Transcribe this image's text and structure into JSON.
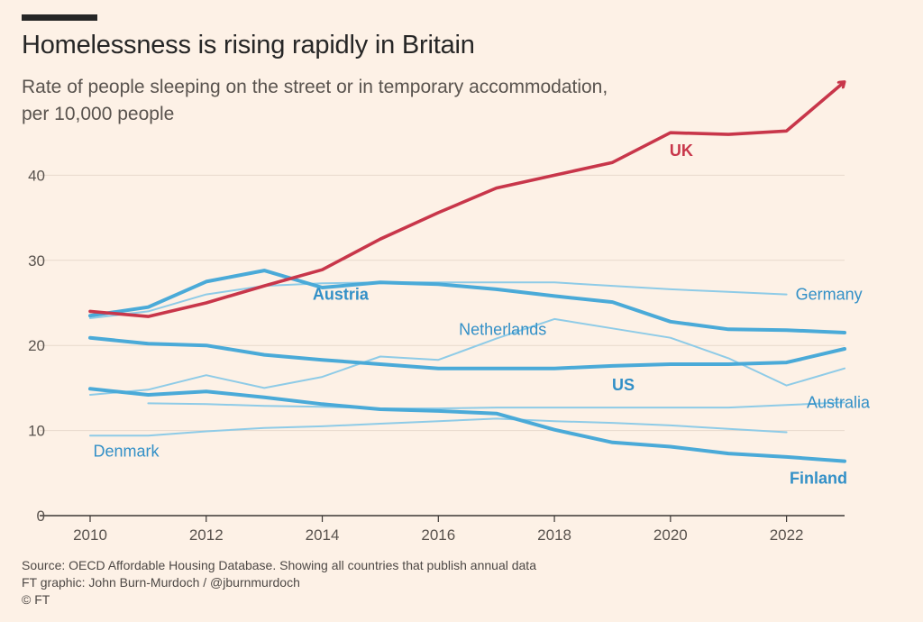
{
  "header": {
    "title": "Homelessness is rising rapidly in Britain",
    "subtitle_line1": "Rate of people sleeping on the street or in temporary accommodation,",
    "subtitle_line2": "per 10,000 people"
  },
  "footer": {
    "source": "Source: OECD Affordable Housing Database. Showing all countries that publish annual data",
    "credit": "FT graphic: John Burn-Murdoch / @jburnmurdoch",
    "copyright": "© FT"
  },
  "colors": {
    "uk": "#c8364a",
    "main_blue": "#4aaad8",
    "light_blue": "#8ecbe7",
    "label_blue": "#3390c7",
    "grid": "#e7d9cc",
    "axis": "#59534e",
    "background": "#fdf1e6"
  },
  "chart_data": {
    "type": "line",
    "title": "Homelessness is rising rapidly in Britain",
    "subtitle": "Rate of people sleeping on the street or in temporary accommodation, per 10,000 people",
    "xlim": [
      2010,
      2023
    ],
    "ylim": [
      0,
      45
    ],
    "x_ticks": [
      2010,
      2012,
      2014,
      2016,
      2018,
      2020,
      2022
    ],
    "y_ticks": [
      0,
      10,
      20,
      30,
      40
    ],
    "grid": true,
    "legend": "direct labels",
    "series": [
      {
        "name": "UK",
        "style": "uk",
        "x": [
          2010,
          2011,
          2012,
          2013,
          2014,
          2015,
          2016,
          2017,
          2018,
          2019,
          2020,
          2021,
          2022,
          2023
        ],
        "values": [
          24.0,
          23.4,
          25.0,
          27.0,
          28.9,
          32.5,
          35.6,
          38.5,
          40.0,
          41.5,
          45.0,
          44.8,
          45.2,
          51.0
        ]
      },
      {
        "name": "Austria",
        "style": "main",
        "x": [
          2010,
          2011,
          2012,
          2013,
          2014,
          2015,
          2016,
          2017,
          2018,
          2019,
          2020,
          2021,
          2022,
          2023
        ],
        "values": [
          23.5,
          24.5,
          27.5,
          28.8,
          26.8,
          27.4,
          27.2,
          26.6,
          25.8,
          25.1,
          22.8,
          21.9,
          21.8,
          21.5
        ]
      },
      {
        "name": "Germany",
        "style": "light",
        "x": [
          2010,
          2011,
          2012,
          2013,
          2014,
          2015,
          2016,
          2017,
          2018,
          2019,
          2020,
          2021,
          2022
        ],
        "values": [
          23.2,
          24.0,
          26.0,
          27.0,
          27.3,
          27.4,
          27.4,
          27.4,
          27.4,
          27.0,
          26.6,
          26.3,
          26.0
        ]
      },
      {
        "name": "US",
        "style": "main",
        "x": [
          2010,
          2011,
          2012,
          2013,
          2014,
          2015,
          2016,
          2017,
          2018,
          2019,
          2020,
          2021,
          2022,
          2023
        ],
        "values": [
          20.9,
          20.2,
          20.0,
          18.9,
          18.3,
          17.8,
          17.3,
          17.3,
          17.3,
          17.6,
          17.8,
          17.8,
          18.0,
          19.6
        ]
      },
      {
        "name": "Netherlands",
        "style": "light",
        "x": [
          2010,
          2011,
          2012,
          2013,
          2014,
          2015,
          2016,
          2017,
          2018,
          2019,
          2020,
          2021,
          2022,
          2023
        ],
        "values": [
          14.2,
          14.8,
          16.5,
          15.0,
          16.3,
          18.7,
          18.3,
          20.8,
          23.1,
          22.0,
          20.9,
          18.5,
          15.3,
          17.3
        ]
      },
      {
        "name": "Australia",
        "style": "light",
        "x": [
          2011,
          2012,
          2013,
          2014,
          2015,
          2016,
          2017,
          2018,
          2019,
          2020,
          2021,
          2022,
          2023
        ],
        "values": [
          13.2,
          13.1,
          12.9,
          12.8,
          12.6,
          12.6,
          12.7,
          12.7,
          12.7,
          12.7,
          12.7,
          13.0,
          13.3
        ]
      },
      {
        "name": "Finland",
        "style": "main",
        "x": [
          2010,
          2011,
          2012,
          2013,
          2014,
          2015,
          2016,
          2017,
          2018,
          2019,
          2020,
          2021,
          2022,
          2023
        ],
        "values": [
          14.9,
          14.2,
          14.6,
          13.9,
          13.1,
          12.5,
          12.3,
          12.0,
          10.1,
          8.6,
          8.1,
          7.3,
          6.9,
          6.4
        ]
      },
      {
        "name": "Denmark",
        "style": "light",
        "x": [
          2010,
          2011,
          2012,
          2013,
          2014,
          2015,
          2016,
          2017,
          2018,
          2019,
          2020,
          2021,
          2022
        ],
        "values": [
          9.4,
          9.4,
          9.9,
          10.3,
          10.5,
          10.8,
          11.1,
          11.4,
          11.1,
          10.9,
          10.6,
          10.2,
          9.8
        ]
      }
    ]
  }
}
